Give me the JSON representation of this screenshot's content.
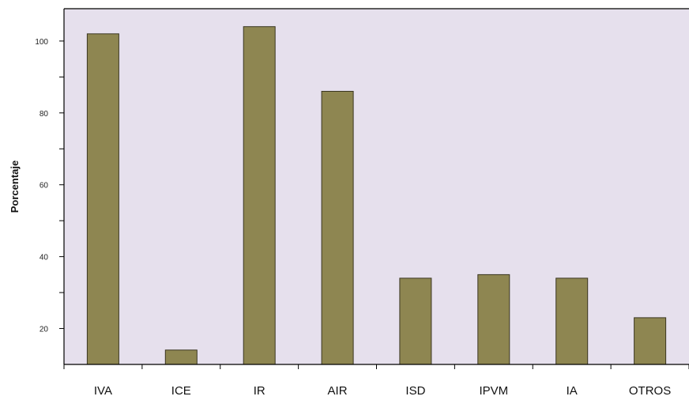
{
  "chart_data": {
    "type": "bar",
    "categories": [
      "IVA",
      "ICE",
      "IR",
      "AIR",
      "ISD",
      "IPVM",
      "IA",
      "OTROS"
    ],
    "values": [
      102,
      14,
      104,
      86,
      34,
      35,
      34,
      23
    ],
    "title": "",
    "xlabel": "",
    "ylabel": "Porcentaje",
    "ylim": [
      10,
      109
    ],
    "yticks": [
      20,
      40,
      60,
      80,
      100
    ],
    "grid": false,
    "legend": "none",
    "colors": {
      "plot_background": "#e6e0ed",
      "bar_fill": "#8e8651",
      "bar_stroke": "#3b3722",
      "axis": "#000000"
    }
  }
}
